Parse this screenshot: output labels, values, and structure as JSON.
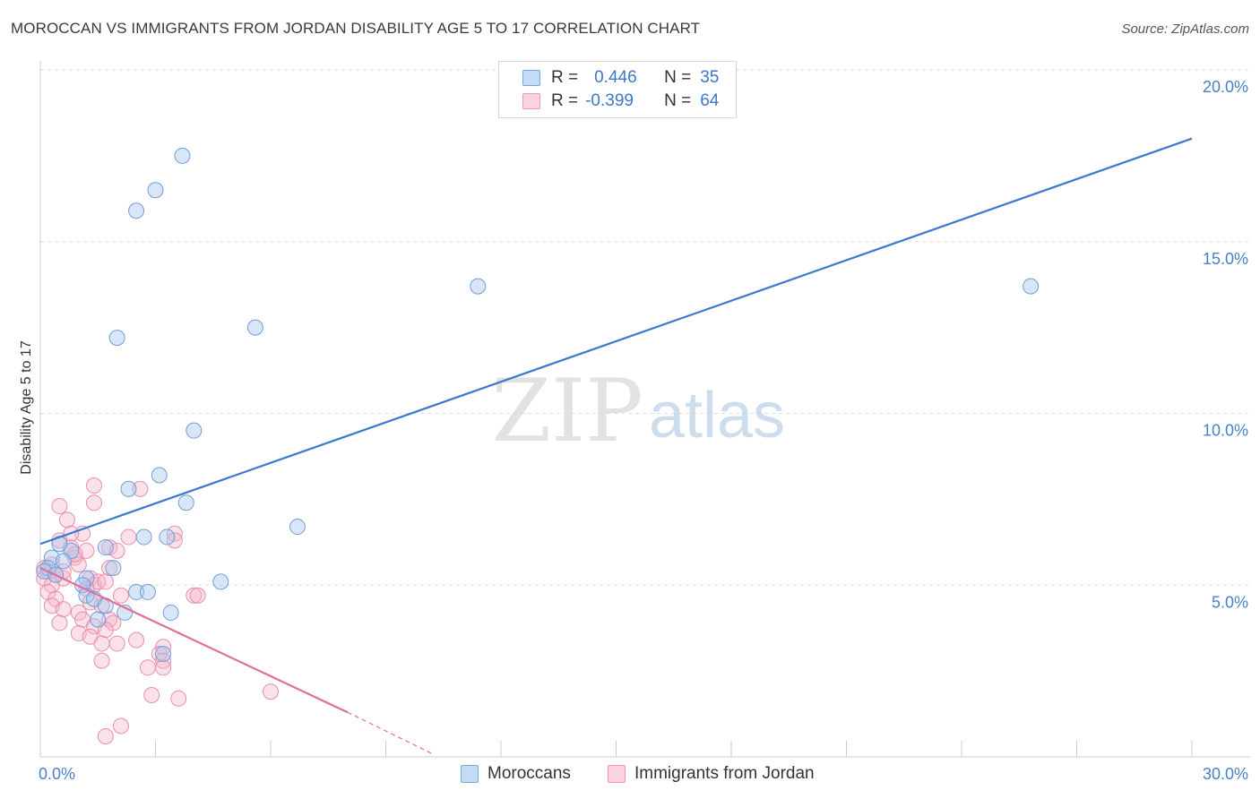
{
  "header": {
    "title": "MOROCCAN VS IMMIGRANTS FROM JORDAN DISABILITY AGE 5 TO 17 CORRELATION CHART",
    "source": "Source: ZipAtlas.com"
  },
  "watermark": {
    "zip": "ZIP",
    "atlas": "atlas"
  },
  "legend": {
    "rows": [
      {
        "r_label": "R =",
        "r_value": "0.446",
        "n_label": "N =",
        "n_value": "35",
        "color": "#a8c8f0"
      },
      {
        "r_label": "R =",
        "r_value": "-0.399",
        "n_label": "N =",
        "n_value": "64",
        "color": "#f5b5c8"
      }
    ]
  },
  "bottom_legend": {
    "series1": "Moroccans",
    "series2": "Immigrants from Jordan"
  },
  "colors": {
    "blue": "#3b78d0",
    "blue_fill": "#a8c8f0",
    "pink": "#e0709a",
    "pink_fill": "#f5b5c8",
    "tick": "#4a80c8"
  },
  "chart_data": {
    "type": "scatter",
    "title": "MOROCCAN VS IMMIGRANTS FROM JORDAN DISABILITY AGE 5 TO 17 CORRELATION CHART",
    "xlabel": "",
    "ylabel": "Disability Age 5 to 17",
    "xlim": [
      0,
      30
    ],
    "ylim": [
      0,
      20
    ],
    "x_tick_labels": [
      "0.0%",
      "30.0%"
    ],
    "y_ticks": [
      5,
      10,
      15,
      20
    ],
    "y_tick_labels": [
      "5.0%",
      "10.0%",
      "15.0%",
      "20.0%"
    ],
    "series": [
      {
        "name": "Moroccans",
        "r": 0.446,
        "n": 35,
        "trend": {
          "x": [
            0.0,
            30.0
          ],
          "y": [
            6.2,
            18.0
          ]
        },
        "points": [
          [
            3.7,
            17.5
          ],
          [
            3.0,
            16.5
          ],
          [
            2.5,
            15.9
          ],
          [
            2.0,
            12.2
          ],
          [
            5.6,
            12.5
          ],
          [
            11.4,
            13.7
          ],
          [
            25.8,
            13.7
          ],
          [
            4.0,
            9.5
          ],
          [
            3.1,
            8.2
          ],
          [
            2.3,
            7.8
          ],
          [
            3.8,
            7.4
          ],
          [
            6.7,
            6.7
          ],
          [
            2.7,
            6.4
          ],
          [
            3.3,
            6.4
          ],
          [
            1.7,
            6.1
          ],
          [
            0.8,
            6.0
          ],
          [
            0.5,
            6.2
          ],
          [
            0.3,
            5.8
          ],
          [
            0.6,
            5.7
          ],
          [
            0.2,
            5.5
          ],
          [
            1.9,
            5.5
          ],
          [
            0.1,
            5.4
          ],
          [
            0.4,
            5.3
          ],
          [
            1.2,
            5.2
          ],
          [
            1.1,
            5.0
          ],
          [
            4.7,
            5.1
          ],
          [
            2.5,
            4.8
          ],
          [
            2.8,
            4.8
          ],
          [
            1.2,
            4.7
          ],
          [
            1.4,
            4.6
          ],
          [
            1.7,
            4.4
          ],
          [
            2.2,
            4.2
          ],
          [
            3.4,
            4.2
          ],
          [
            1.5,
            4.0
          ],
          [
            3.2,
            3.0
          ]
        ]
      },
      {
        "name": "Immigrants from Jordan",
        "r": -0.399,
        "n": 64,
        "trend": {
          "x": [
            0.0,
            8.0
          ],
          "y": [
            5.5,
            1.3
          ]
        },
        "trend_dashed": {
          "x": [
            8.0,
            10.2
          ],
          "y": [
            1.3,
            0.1
          ]
        },
        "points": [
          [
            1.4,
            7.9
          ],
          [
            2.6,
            7.8
          ],
          [
            1.4,
            7.4
          ],
          [
            0.5,
            7.3
          ],
          [
            0.7,
            6.9
          ],
          [
            1.1,
            6.5
          ],
          [
            0.8,
            6.5
          ],
          [
            2.3,
            6.4
          ],
          [
            3.5,
            6.5
          ],
          [
            3.5,
            6.3
          ],
          [
            0.5,
            6.3
          ],
          [
            0.8,
            6.1
          ],
          [
            1.8,
            6.1
          ],
          [
            0.9,
            5.8
          ],
          [
            1.2,
            6.0
          ],
          [
            0.3,
            5.6
          ],
          [
            1.0,
            5.6
          ],
          [
            1.8,
            5.5
          ],
          [
            0.1,
            5.5
          ],
          [
            0.2,
            5.4
          ],
          [
            0.4,
            5.3
          ],
          [
            0.1,
            5.2
          ],
          [
            0.6,
            5.2
          ],
          [
            1.3,
            5.2
          ],
          [
            1.4,
            5.0
          ],
          [
            0.3,
            5.0
          ],
          [
            1.5,
            5.1
          ],
          [
            1.7,
            5.1
          ],
          [
            0.2,
            4.8
          ],
          [
            0.4,
            4.6
          ],
          [
            2.1,
            4.7
          ],
          [
            4.0,
            4.7
          ],
          [
            4.1,
            4.7
          ],
          [
            0.3,
            4.4
          ],
          [
            1.3,
            4.5
          ],
          [
            1.6,
            4.4
          ],
          [
            0.6,
            4.3
          ],
          [
            1.0,
            4.2
          ],
          [
            1.1,
            4.0
          ],
          [
            0.5,
            3.9
          ],
          [
            1.8,
            4.0
          ],
          [
            1.9,
            3.9
          ],
          [
            1.4,
            3.8
          ],
          [
            1.7,
            3.7
          ],
          [
            1.0,
            3.6
          ],
          [
            1.3,
            3.5
          ],
          [
            2.5,
            3.4
          ],
          [
            1.6,
            3.3
          ],
          [
            2.0,
            3.3
          ],
          [
            3.2,
            3.2
          ],
          [
            3.1,
            3.0
          ],
          [
            3.2,
            2.8
          ],
          [
            1.6,
            2.8
          ],
          [
            2.8,
            2.6
          ],
          [
            3.2,
            2.6
          ],
          [
            2.9,
            1.8
          ],
          [
            6.0,
            1.9
          ],
          [
            3.6,
            1.7
          ],
          [
            2.1,
            0.9
          ],
          [
            1.7,
            0.6
          ],
          [
            0.9,
            5.9
          ],
          [
            2.0,
            6.0
          ],
          [
            0.6,
            5.4
          ],
          [
            1.2,
            4.9
          ]
        ]
      }
    ]
  }
}
